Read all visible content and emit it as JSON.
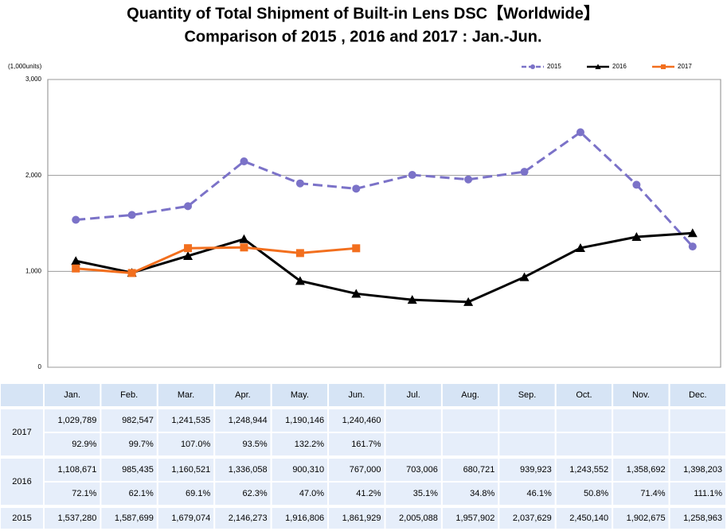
{
  "chart_data": {
    "type": "line",
    "title": "Quantity of Total Shipment of Built-in Lens DSC【Worldwide】",
    "subtitle": "Comparison of 2015 , 2016 and 2017 : Jan.-Jun.",
    "y_label": "(1,000units)",
    "categories": [
      "Jan.",
      "Feb.",
      "Mar.",
      "Apr.",
      "May.",
      "Jun.",
      "Jul.",
      "Aug.",
      "Sep.",
      "Oct.",
      "Nov.",
      "Dec."
    ],
    "ylim": [
      0,
      3000
    ],
    "yticks": [
      0,
      {
        "value": 1000,
        "label": "1,000"
      },
      {
        "value": 2000,
        "label": "2,000"
      },
      {
        "value": 3000,
        "label": "3,000"
      }
    ],
    "grid": true,
    "legend": "top-right",
    "series": [
      {
        "name": "2015",
        "color": "#7b72c8",
        "dash": true,
        "marker": "circle",
        "values": [
          1537.28,
          1587.699,
          1679.074,
          2146.273,
          1916.806,
          1861.929,
          2005.088,
          1957.902,
          2037.629,
          2450.14,
          1902.675,
          1258.963
        ],
        "value_labels": [
          "1,537,280",
          "1,587,699",
          "1,679,074",
          "2,146,273",
          "1,916,806",
          "1,861,929",
          "2,005,088",
          "1,957,902",
          "2,037,629",
          "2,450,140",
          "1,902,675",
          "1,258,963"
        ]
      },
      {
        "name": "2016",
        "color": "#000000",
        "dash": false,
        "marker": "triangle",
        "values": [
          1108.671,
          985.435,
          1160.521,
          1336.058,
          900.31,
          767.0,
          703.006,
          680.721,
          939.923,
          1243.552,
          1358.692,
          1398.203
        ],
        "value_labels": [
          "1,108,671",
          "985,435",
          "1,160,521",
          "1,336,058",
          "900,310",
          "767,000",
          "703,006",
          "680,721",
          "939,923",
          "1,243,552",
          "1,358,692",
          "1,398,203"
        ],
        "percent_labels": [
          "72.1%",
          "62.1%",
          "69.1%",
          "62.3%",
          "47.0%",
          "41.2%",
          "35.1%",
          "34.8%",
          "46.1%",
          "50.8%",
          "71.4%",
          "111.1%"
        ]
      },
      {
        "name": "2017",
        "color": "#f26f1e",
        "dash": false,
        "marker": "square",
        "values": [
          1029.789,
          982.547,
          1241.535,
          1248.944,
          1190.146,
          1240.46,
          null,
          null,
          null,
          null,
          null,
          null
        ],
        "value_labels": [
          "1,029,789",
          "982,547",
          "1,241,535",
          "1,248,944",
          "1,190,146",
          "1,240,460",
          null,
          null,
          null,
          null,
          null,
          null
        ],
        "percent_labels": [
          "92.9%",
          "99.7%",
          "107.0%",
          "93.5%",
          "132.2%",
          "161.7%",
          null,
          null,
          null,
          null,
          null,
          null
        ]
      }
    ]
  }
}
